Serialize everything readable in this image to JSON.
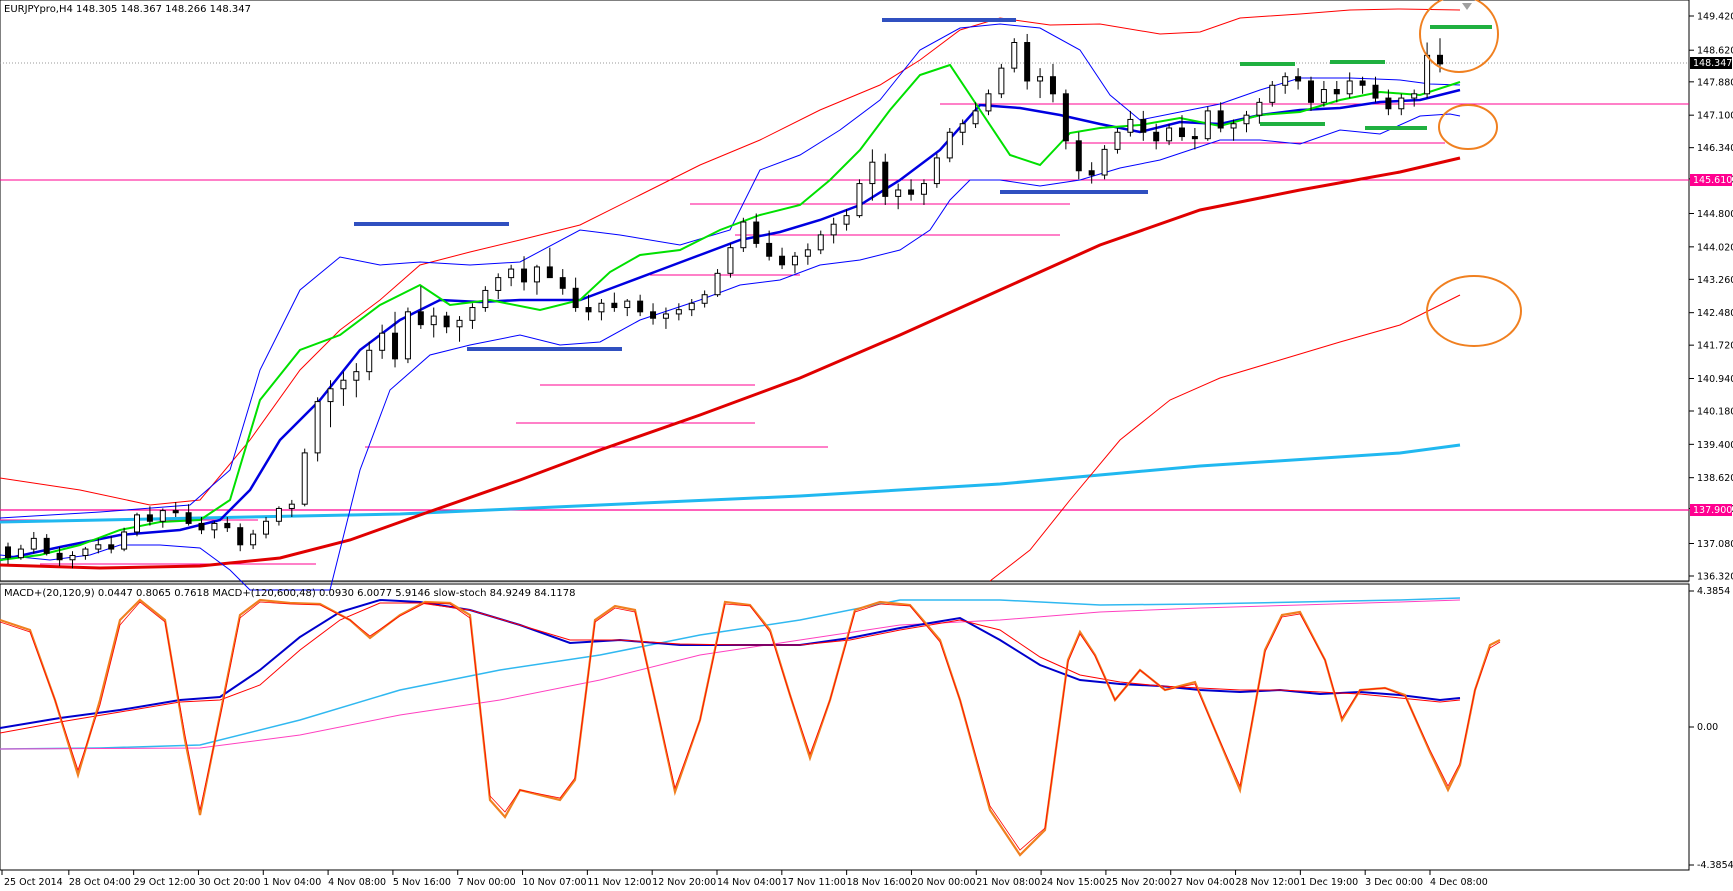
{
  "header": {
    "main_title": "EURJPYpro,H4  148.305 148.367 148.266 148.347",
    "indicator_title": "MACD+(20,120,9) 0.0447 0.8065 0.7618  MACD+(120,600,48) 0.0930 6.0077 5.9146  slow-stoch 84.9249 84.1178"
  },
  "price_axis": {
    "ticks": [
      "149.420",
      "148.620",
      "147.880",
      "147.100",
      "146.340",
      "145.610",
      "144.800",
      "144.020",
      "143.260",
      "142.480",
      "141.720",
      "140.940",
      "140.180",
      "139.400",
      "138.620",
      "137.900",
      "137.080",
      "136.320"
    ],
    "current_price_label": "148.347",
    "line_labels": [
      "145.610",
      "137.900"
    ]
  },
  "indicator_axis": {
    "ticks": [
      "4.3854",
      "0.00",
      "-4.3854"
    ]
  },
  "time_axis": {
    "labels": [
      "25 Oct 2014",
      "28 Oct 04:00",
      "29 Oct 12:00",
      "30 Oct 20:00",
      "1 Nov 04:00",
      "4 Nov 08:00",
      "5 Nov 16:00",
      "7 Nov 00:00",
      "10 Nov 07:00",
      "11 Nov 12:00",
      "12 Nov 20:00",
      "14 Nov 04:00",
      "17 Nov 11:00",
      "18 Nov 16:00",
      "20 Nov 00:00",
      "21 Nov 08:00",
      "24 Nov 15:00",
      "25 Nov 20:00",
      "27 Nov 04:00",
      "28 Nov 12:00",
      "1 Dec 19:00",
      "3 Dec 00:00",
      "4 Dec 08:00"
    ]
  },
  "colors": {
    "background": "#ffffff",
    "candle": "#000000",
    "ma_fast": "#00e000",
    "ma_mid": "#0000e0",
    "ma_slow": "#e00000",
    "ma_long": "#20b8f0",
    "bollinger": "#0000ff",
    "envelope": "#ff0000",
    "hline": "#ff0090",
    "support_marker": "#3050c0",
    "target_marker": "#20b040",
    "circle": "#f08020",
    "macd_fast": "#0000cc",
    "macd_signal": "#ff0000",
    "stoch_main": "#f08020",
    "macd_long": "#30b8f0",
    "macd_long_signal": "#ff40c0"
  },
  "chart_data": {
    "type": "candlestick",
    "symbol": "EURJPYpro",
    "timeframe": "H4",
    "ohlc_current": {
      "open": 148.305,
      "high": 148.367,
      "low": 148.266,
      "close": 148.347
    },
    "ylim": [
      136.0,
      150.0
    ],
    "candles": [
      [
        137.0,
        137.1,
        136.6,
        136.75
      ],
      [
        136.75,
        137.05,
        136.7,
        136.95
      ],
      [
        136.95,
        137.35,
        136.85,
        137.2
      ],
      [
        137.2,
        137.3,
        136.8,
        136.85
      ],
      [
        136.85,
        137.0,
        136.55,
        136.7
      ],
      [
        136.7,
        136.9,
        136.5,
        136.8
      ],
      [
        136.8,
        137.0,
        136.7,
        136.95
      ],
      [
        136.95,
        137.2,
        136.85,
        137.05
      ],
      [
        137.05,
        137.25,
        136.85,
        136.95
      ],
      [
        136.95,
        137.45,
        136.9,
        137.35
      ],
      [
        137.35,
        137.8,
        137.25,
        137.75
      ],
      [
        137.75,
        137.95,
        137.5,
        137.6
      ],
      [
        137.6,
        137.9,
        137.45,
        137.85
      ],
      [
        137.85,
        138.05,
        137.7,
        137.8
      ],
      [
        137.8,
        138.0,
        137.5,
        137.55
      ],
      [
        137.55,
        137.7,
        137.3,
        137.4
      ],
      [
        137.4,
        137.6,
        137.2,
        137.55
      ],
      [
        137.55,
        137.7,
        137.35,
        137.45
      ],
      [
        137.45,
        137.55,
        136.9,
        137.05
      ],
      [
        137.05,
        137.4,
        136.95,
        137.3
      ],
      [
        137.3,
        137.7,
        137.2,
        137.6
      ],
      [
        137.6,
        137.95,
        137.5,
        137.9
      ],
      [
        137.9,
        138.1,
        137.7,
        138.0
      ],
      [
        138.0,
        139.3,
        137.95,
        139.2
      ],
      [
        139.2,
        140.5,
        139.0,
        140.4
      ],
      [
        140.4,
        140.9,
        139.8,
        140.7
      ],
      [
        140.7,
        141.1,
        140.3,
        140.9
      ],
      [
        140.9,
        141.3,
        140.5,
        141.1
      ],
      [
        141.1,
        141.8,
        140.9,
        141.6
      ],
      [
        141.6,
        142.2,
        141.4,
        142.0
      ],
      [
        142.0,
        142.5,
        141.2,
        141.4
      ],
      [
        141.4,
        142.6,
        141.3,
        142.5
      ],
      [
        142.5,
        143.1,
        142.1,
        142.2
      ],
      [
        142.2,
        142.6,
        141.9,
        142.4
      ],
      [
        142.4,
        142.5,
        142.0,
        142.15
      ],
      [
        142.15,
        142.4,
        141.8,
        142.3
      ],
      [
        142.3,
        142.7,
        142.1,
        142.6
      ],
      [
        142.6,
        143.1,
        142.5,
        143.0
      ],
      [
        143.0,
        143.4,
        142.8,
        143.3
      ],
      [
        143.3,
        143.6,
        143.1,
        143.5
      ],
      [
        143.5,
        143.8,
        143.0,
        143.2
      ],
      [
        143.2,
        143.6,
        142.9,
        143.55
      ],
      [
        143.55,
        144.0,
        143.3,
        143.3
      ],
      [
        143.3,
        143.5,
        142.9,
        143.05
      ],
      [
        143.05,
        143.3,
        142.5,
        142.6
      ],
      [
        142.6,
        142.9,
        142.3,
        142.5
      ],
      [
        142.5,
        142.8,
        142.3,
        142.7
      ],
      [
        142.7,
        142.95,
        142.5,
        142.6
      ],
      [
        142.6,
        142.8,
        142.4,
        142.75
      ],
      [
        142.75,
        142.9,
        142.4,
        142.5
      ],
      [
        142.5,
        142.7,
        142.2,
        142.35
      ],
      [
        142.35,
        142.6,
        142.1,
        142.45
      ],
      [
        142.45,
        142.7,
        142.3,
        142.55
      ],
      [
        142.55,
        142.8,
        142.4,
        142.7
      ],
      [
        142.7,
        143.0,
        142.6,
        142.9
      ],
      [
        142.9,
        143.5,
        142.85,
        143.4
      ],
      [
        143.4,
        144.1,
        143.3,
        144.0
      ],
      [
        144.0,
        144.7,
        143.9,
        144.6
      ],
      [
        144.6,
        144.8,
        144.0,
        144.1
      ],
      [
        144.1,
        144.4,
        143.7,
        143.8
      ],
      [
        143.8,
        144.0,
        143.5,
        143.6
      ],
      [
        143.6,
        143.9,
        143.4,
        143.8
      ],
      [
        143.8,
        144.1,
        143.6,
        143.95
      ],
      [
        143.95,
        144.4,
        143.85,
        144.3
      ],
      [
        144.3,
        144.7,
        144.1,
        144.55
      ],
      [
        144.55,
        144.9,
        144.4,
        144.75
      ],
      [
        144.75,
        145.6,
        144.7,
        145.5
      ],
      [
        145.5,
        146.3,
        145.1,
        146.0
      ],
      [
        146.0,
        146.2,
        145.0,
        145.2
      ],
      [
        145.2,
        145.5,
        144.9,
        145.35
      ],
      [
        145.35,
        145.6,
        145.1,
        145.25
      ],
      [
        145.25,
        145.6,
        145.0,
        145.5
      ],
      [
        145.5,
        146.2,
        145.4,
        146.1
      ],
      [
        146.1,
        146.8,
        146.0,
        146.7
      ],
      [
        146.7,
        147.0,
        146.4,
        146.9
      ],
      [
        146.9,
        147.4,
        146.8,
        147.2
      ],
      [
        147.2,
        147.7,
        147.1,
        147.6
      ],
      [
        147.6,
        148.3,
        147.5,
        148.2
      ],
      [
        148.2,
        148.9,
        148.1,
        148.8
      ],
      [
        148.8,
        149.0,
        147.7,
        147.9
      ],
      [
        147.9,
        148.2,
        147.5,
        148.0
      ],
      [
        148.0,
        148.3,
        147.4,
        147.6
      ],
      [
        147.6,
        147.7,
        146.3,
        146.5
      ],
      [
        146.5,
        146.7,
        145.6,
        145.8
      ],
      [
        145.8,
        146.0,
        145.5,
        145.7
      ],
      [
        145.7,
        146.4,
        145.6,
        146.3
      ],
      [
        146.3,
        146.8,
        146.2,
        146.7
      ],
      [
        146.7,
        147.2,
        146.6,
        147.0
      ],
      [
        147.0,
        147.2,
        146.5,
        146.7
      ],
      [
        146.7,
        146.9,
        146.3,
        146.5
      ],
      [
        146.5,
        146.9,
        146.4,
        146.8
      ],
      [
        146.8,
        147.1,
        146.5,
        146.6
      ],
      [
        146.6,
        146.8,
        146.3,
        146.55
      ],
      [
        146.55,
        147.3,
        146.5,
        147.2
      ],
      [
        147.2,
        147.4,
        146.7,
        146.8
      ],
      [
        146.8,
        147.0,
        146.5,
        146.9
      ],
      [
        146.9,
        147.2,
        146.7,
        147.1
      ],
      [
        147.1,
        147.5,
        146.9,
        147.4
      ],
      [
        147.4,
        147.9,
        147.3,
        147.8
      ],
      [
        147.8,
        148.1,
        147.6,
        148.0
      ],
      [
        148.0,
        148.2,
        147.7,
        147.9
      ],
      [
        147.9,
        148.0,
        147.2,
        147.4
      ],
      [
        147.4,
        147.9,
        147.3,
        147.7
      ],
      [
        147.7,
        147.9,
        147.4,
        147.6
      ],
      [
        147.6,
        148.1,
        147.5,
        147.9
      ],
      [
        147.9,
        148.0,
        147.6,
        147.8
      ],
      [
        147.8,
        148.0,
        147.4,
        147.5
      ],
      [
        147.5,
        147.7,
        147.1,
        147.25
      ],
      [
        147.25,
        147.6,
        147.1,
        147.5
      ],
      [
        147.5,
        147.7,
        147.3,
        147.6
      ],
      [
        147.6,
        148.8,
        147.5,
        148.5
      ],
      [
        148.5,
        148.9,
        148.1,
        148.3
      ]
    ],
    "horizontal_lines": [
      145.61,
      137.9
    ]
  }
}
